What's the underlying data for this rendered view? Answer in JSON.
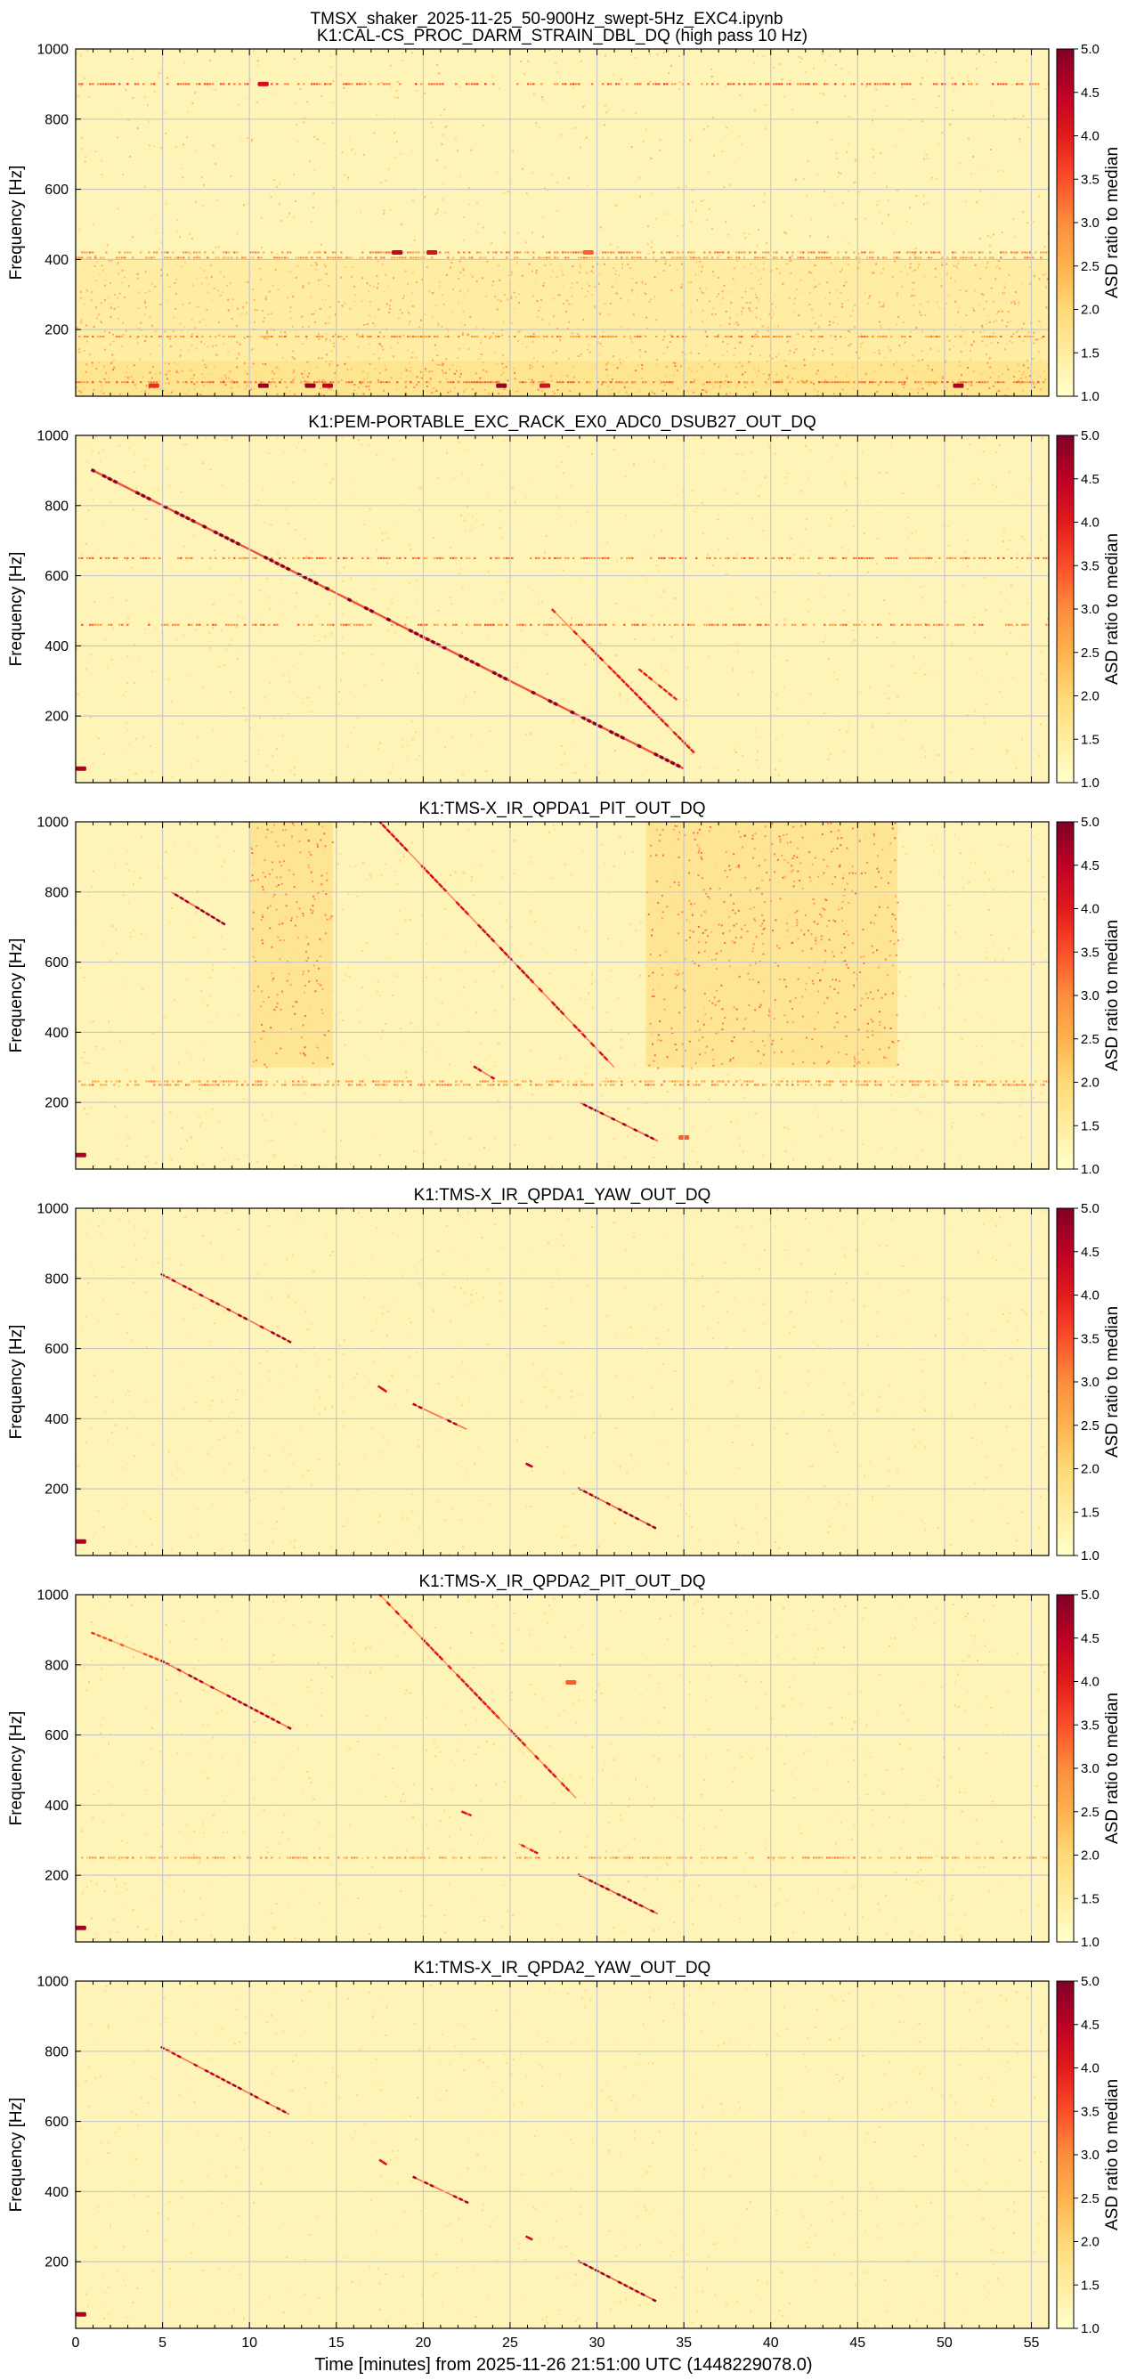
{
  "figure": {
    "suptitle": "TMSX_shaker_2025-11-25_50-900Hz_swept-5Hz_EXC4.ipynb",
    "xlabel": "Time [minutes] from 2025-11-26 21:51:00 UTC (1448229078.0)"
  },
  "colors": {
    "cmap": [
      "#ffffcc",
      "#ffeda0",
      "#fed976",
      "#feb24c",
      "#fd8d3c",
      "#fc4e2a",
      "#e31a1c",
      "#bd0026",
      "#800026"
    ],
    "background": "#fff4b8",
    "grid": "#c8c8c8"
  },
  "chart_data": [
    {
      "type": "heatmap",
      "title": "K1:CAL-CS_PROC_DARM_STRAIN_DBL_DQ (high pass 10 Hz)",
      "ylabel": "Frequency [Hz]",
      "xlim": [
        0,
        56
      ],
      "ylim": [
        10,
        1000
      ],
      "xticks": [
        0,
        5,
        10,
        15,
        20,
        25,
        30,
        35,
        40,
        45,
        50,
        55
      ],
      "yticks": [
        200,
        400,
        600,
        800,
        1000
      ],
      "colorbar": {
        "label": "ASD ratio to median",
        "range": [
          1.0,
          5.0
        ],
        "ticks": [
          "1.0",
          "1.5",
          "2.0",
          "2.5",
          "3.0",
          "3.5",
          "4.0",
          "4.5",
          "5.0"
        ]
      },
      "noise_level": 0.22,
      "lines": [
        {
          "f": 900,
          "t": [
            0,
            56
          ],
          "level": 0.45
        },
        {
          "f": 420,
          "t": [
            0,
            56
          ],
          "level": 0.35
        },
        {
          "f": 405,
          "t": [
            0,
            56
          ],
          "level": 0.3
        },
        {
          "f": 180,
          "t": [
            0,
            56
          ],
          "level": 0.35
        },
        {
          "f": 50,
          "t": [
            0,
            56
          ],
          "level": 0.4
        }
      ],
      "sweeps": [],
      "patches": [
        {
          "t": [
            0,
            56
          ],
          "f": [
            10,
            400
          ],
          "level": 0.3
        },
        {
          "t": [
            0,
            56
          ],
          "f": [
            10,
            110
          ],
          "level": 0.4
        }
      ],
      "spots": [
        {
          "t": 10.8,
          "f": 900,
          "v": 0.8
        },
        {
          "t": 18.5,
          "f": 420,
          "v": 0.85
        },
        {
          "t": 20.5,
          "f": 420,
          "v": 0.8
        },
        {
          "t": 10.8,
          "f": 40,
          "v": 0.95
        },
        {
          "t": 13.5,
          "f": 40,
          "v": 0.95
        },
        {
          "t": 14.5,
          "f": 40,
          "v": 0.85
        },
        {
          "t": 24.5,
          "f": 40,
          "v": 0.95
        },
        {
          "t": 27.0,
          "f": 40,
          "v": 0.8
        },
        {
          "t": 50.8,
          "f": 40,
          "v": 0.9
        },
        {
          "t": 4.5,
          "f": 40,
          "v": 0.7
        },
        {
          "t": 29.5,
          "f": 420,
          "v": 0.6
        }
      ]
    },
    {
      "type": "heatmap",
      "title": "K1:PEM-PORTABLE_EXC_RACK_EX0_ADC0_DSUB27_OUT_DQ",
      "ylabel": "Frequency [Hz]",
      "xlim": [
        0,
        56
      ],
      "ylim": [
        10,
        1000
      ],
      "xticks": [
        0,
        5,
        10,
        15,
        20,
        25,
        30,
        35,
        40,
        45,
        50,
        55
      ],
      "yticks": [
        200,
        400,
        600,
        800,
        1000
      ],
      "colorbar": {
        "label": "ASD ratio to median",
        "range": [
          1.0,
          5.0
        ],
        "ticks": [
          "1.0",
          "1.5",
          "2.0",
          "2.5",
          "3.0",
          "3.5",
          "4.0",
          "4.5",
          "5.0"
        ]
      },
      "noise_level": 0.14,
      "lines": [
        {
          "f": 650,
          "t": [
            0,
            56
          ],
          "level": 0.4
        },
        {
          "f": 460,
          "t": [
            0,
            56
          ],
          "level": 0.4
        }
      ],
      "sweeps": [
        {
          "t0": 1.0,
          "f0": 900,
          "t1": 35.0,
          "f1": 50,
          "level": 0.95,
          "width": 3
        },
        {
          "t0": 27.5,
          "f0": 500,
          "t1": 35.5,
          "f1": 100,
          "level": 0.7,
          "width": 2
        },
        {
          "t0": 32.5,
          "f0": 330,
          "t1": 34.5,
          "f1": 250,
          "level": 0.7,
          "width": 2
        }
      ],
      "patches": [],
      "spots": [
        {
          "t": 0.3,
          "f": 50,
          "v": 0.9
        }
      ]
    },
    {
      "type": "heatmap",
      "title": "K1:TMS-X_IR_QPDA1_PIT_OUT_DQ",
      "ylabel": "Frequency [Hz]",
      "xlim": [
        0,
        56
      ],
      "ylim": [
        10,
        1000
      ],
      "xticks": [
        0,
        5,
        10,
        15,
        20,
        25,
        30,
        35,
        40,
        45,
        50,
        55
      ],
      "yticks": [
        200,
        400,
        600,
        800,
        1000
      ],
      "colorbar": {
        "label": "ASD ratio to median",
        "range": [
          1.0,
          5.0
        ],
        "ticks": [
          "1.0",
          "1.5",
          "2.0",
          "2.5",
          "3.0",
          "3.5",
          "4.0",
          "4.5",
          "5.0"
        ]
      },
      "noise_level": 0.14,
      "lines": [
        {
          "f": 250,
          "t": [
            0,
            56
          ],
          "level": 0.35
        },
        {
          "f": 260,
          "t": [
            0,
            56
          ],
          "level": 0.3
        }
      ],
      "sweeps": [
        {
          "t0": 5.5,
          "f0": 800,
          "t1": 8.5,
          "f1": 710,
          "level": 0.9,
          "width": 2
        },
        {
          "t0": 17.5,
          "f0": 1000,
          "t1": 31.0,
          "f1": 300,
          "level": 0.75,
          "width": 2
        },
        {
          "t0": 23.0,
          "f0": 300,
          "t1": 24.0,
          "f1": 270,
          "level": 0.8,
          "width": 2
        },
        {
          "t0": 29.0,
          "f0": 200,
          "t1": 33.5,
          "f1": 90,
          "level": 0.9,
          "width": 2
        }
      ],
      "patches": [
        {
          "t": [
            10.0,
            14.8
          ],
          "f": [
            300,
            1000
          ],
          "level": 0.45
        },
        {
          "t": [
            32.8,
            47.3
          ],
          "f": [
            300,
            1000
          ],
          "level": 0.45
        }
      ],
      "spots": [
        {
          "t": 0.3,
          "f": 50,
          "v": 0.9
        },
        {
          "t": 35.0,
          "f": 100,
          "v": 0.6
        }
      ]
    },
    {
      "type": "heatmap",
      "title": "K1:TMS-X_IR_QPDA1_YAW_OUT_DQ",
      "ylabel": "Frequency [Hz]",
      "xlim": [
        0,
        56
      ],
      "ylim": [
        10,
        1000
      ],
      "xticks": [
        0,
        5,
        10,
        15,
        20,
        25,
        30,
        35,
        40,
        45,
        50,
        55
      ],
      "yticks": [
        200,
        400,
        600,
        800,
        1000
      ],
      "colorbar": {
        "label": "ASD ratio to median",
        "range": [
          1.0,
          5.0
        ],
        "ticks": [
          "1.0",
          "1.5",
          "2.0",
          "2.5",
          "3.0",
          "3.5",
          "4.0",
          "4.5",
          "5.0"
        ]
      },
      "noise_level": 0.12,
      "lines": [],
      "sweeps": [
        {
          "t0": 5.0,
          "f0": 810,
          "t1": 12.3,
          "f1": 620,
          "level": 0.85,
          "width": 2
        },
        {
          "t0": 17.5,
          "f0": 490,
          "t1": 17.8,
          "f1": 480,
          "level": 0.7,
          "width": 2
        },
        {
          "t0": 19.5,
          "f0": 440,
          "t1": 22.5,
          "f1": 370,
          "level": 0.85,
          "width": 2
        },
        {
          "t0": 26.0,
          "f0": 270,
          "t1": 26.2,
          "f1": 265,
          "level": 0.8,
          "width": 2
        },
        {
          "t0": 29.0,
          "f0": 200,
          "t1": 33.3,
          "f1": 90,
          "level": 0.9,
          "width": 2
        }
      ],
      "patches": [],
      "spots": [
        {
          "t": 0.3,
          "f": 50,
          "v": 0.9
        }
      ]
    },
    {
      "type": "heatmap",
      "title": "K1:TMS-X_IR_QPDA2_PIT_OUT_DQ",
      "ylabel": "Frequency [Hz]",
      "xlim": [
        0,
        56
      ],
      "ylim": [
        10,
        1000
      ],
      "xticks": [
        0,
        5,
        10,
        15,
        20,
        25,
        30,
        35,
        40,
        45,
        50,
        55
      ],
      "yticks": [
        200,
        400,
        600,
        800,
        1000
      ],
      "colorbar": {
        "label": "ASD ratio to median",
        "range": [
          1.0,
          5.0
        ],
        "ticks": [
          "1.0",
          "1.5",
          "2.0",
          "2.5",
          "3.0",
          "3.5",
          "4.0",
          "4.5",
          "5.0"
        ]
      },
      "noise_level": 0.14,
      "lines": [
        {
          "f": 250,
          "t": [
            0,
            56
          ],
          "level": 0.3
        }
      ],
      "sweeps": [
        {
          "t0": 1.0,
          "f0": 890,
          "t1": 5.0,
          "f1": 810,
          "level": 0.6,
          "width": 2
        },
        {
          "t0": 5.0,
          "f0": 810,
          "t1": 12.3,
          "f1": 620,
          "level": 0.85,
          "width": 2
        },
        {
          "t0": 17.5,
          "f0": 1000,
          "t1": 28.8,
          "f1": 420,
          "level": 0.7,
          "width": 2
        },
        {
          "t0": 22.3,
          "f0": 380,
          "t1": 22.8,
          "f1": 370,
          "level": 0.7,
          "width": 2
        },
        {
          "t0": 25.5,
          "f0": 290,
          "t1": 26.5,
          "f1": 265,
          "level": 0.7,
          "width": 2
        },
        {
          "t0": 29.0,
          "f0": 200,
          "t1": 33.5,
          "f1": 90,
          "level": 0.9,
          "width": 2
        }
      ],
      "patches": [],
      "spots": [
        {
          "t": 0.3,
          "f": 50,
          "v": 0.9
        },
        {
          "t": 28.5,
          "f": 750,
          "v": 0.6
        }
      ]
    },
    {
      "type": "heatmap",
      "title": "K1:TMS-X_IR_QPDA2_YAW_OUT_DQ",
      "ylabel": "Frequency [Hz]",
      "xlabel": "Time [minutes] from 2025-11-26 21:51:00 UTC (1448229078.0)",
      "xlim": [
        0,
        56
      ],
      "ylim": [
        10,
        1000
      ],
      "xticks": [
        0,
        5,
        10,
        15,
        20,
        25,
        30,
        35,
        40,
        45,
        50,
        55
      ],
      "yticks": [
        200,
        400,
        600,
        800,
        1000
      ],
      "colorbar": {
        "label": "ASD ratio to median",
        "range": [
          1.0,
          5.0
        ],
        "ticks": [
          "1.0",
          "1.5",
          "2.0",
          "2.5",
          "3.0",
          "3.5",
          "4.0",
          "4.5",
          "5.0"
        ]
      },
      "noise_level": 0.12,
      "lines": [],
      "sweeps": [
        {
          "t0": 5.0,
          "f0": 810,
          "t1": 12.3,
          "f1": 620,
          "level": 0.85,
          "width": 2
        },
        {
          "t0": 17.5,
          "f0": 490,
          "t1": 17.8,
          "f1": 480,
          "level": 0.7,
          "width": 2
        },
        {
          "t0": 19.5,
          "f0": 440,
          "t1": 22.5,
          "f1": 370,
          "level": 0.85,
          "width": 2
        },
        {
          "t0": 26.0,
          "f0": 270,
          "t1": 26.2,
          "f1": 265,
          "level": 0.8,
          "width": 2
        },
        {
          "t0": 29.0,
          "f0": 200,
          "t1": 33.3,
          "f1": 90,
          "level": 0.9,
          "width": 2
        }
      ],
      "patches": [],
      "spots": [
        {
          "t": 0.3,
          "f": 50,
          "v": 0.9
        }
      ]
    }
  ]
}
